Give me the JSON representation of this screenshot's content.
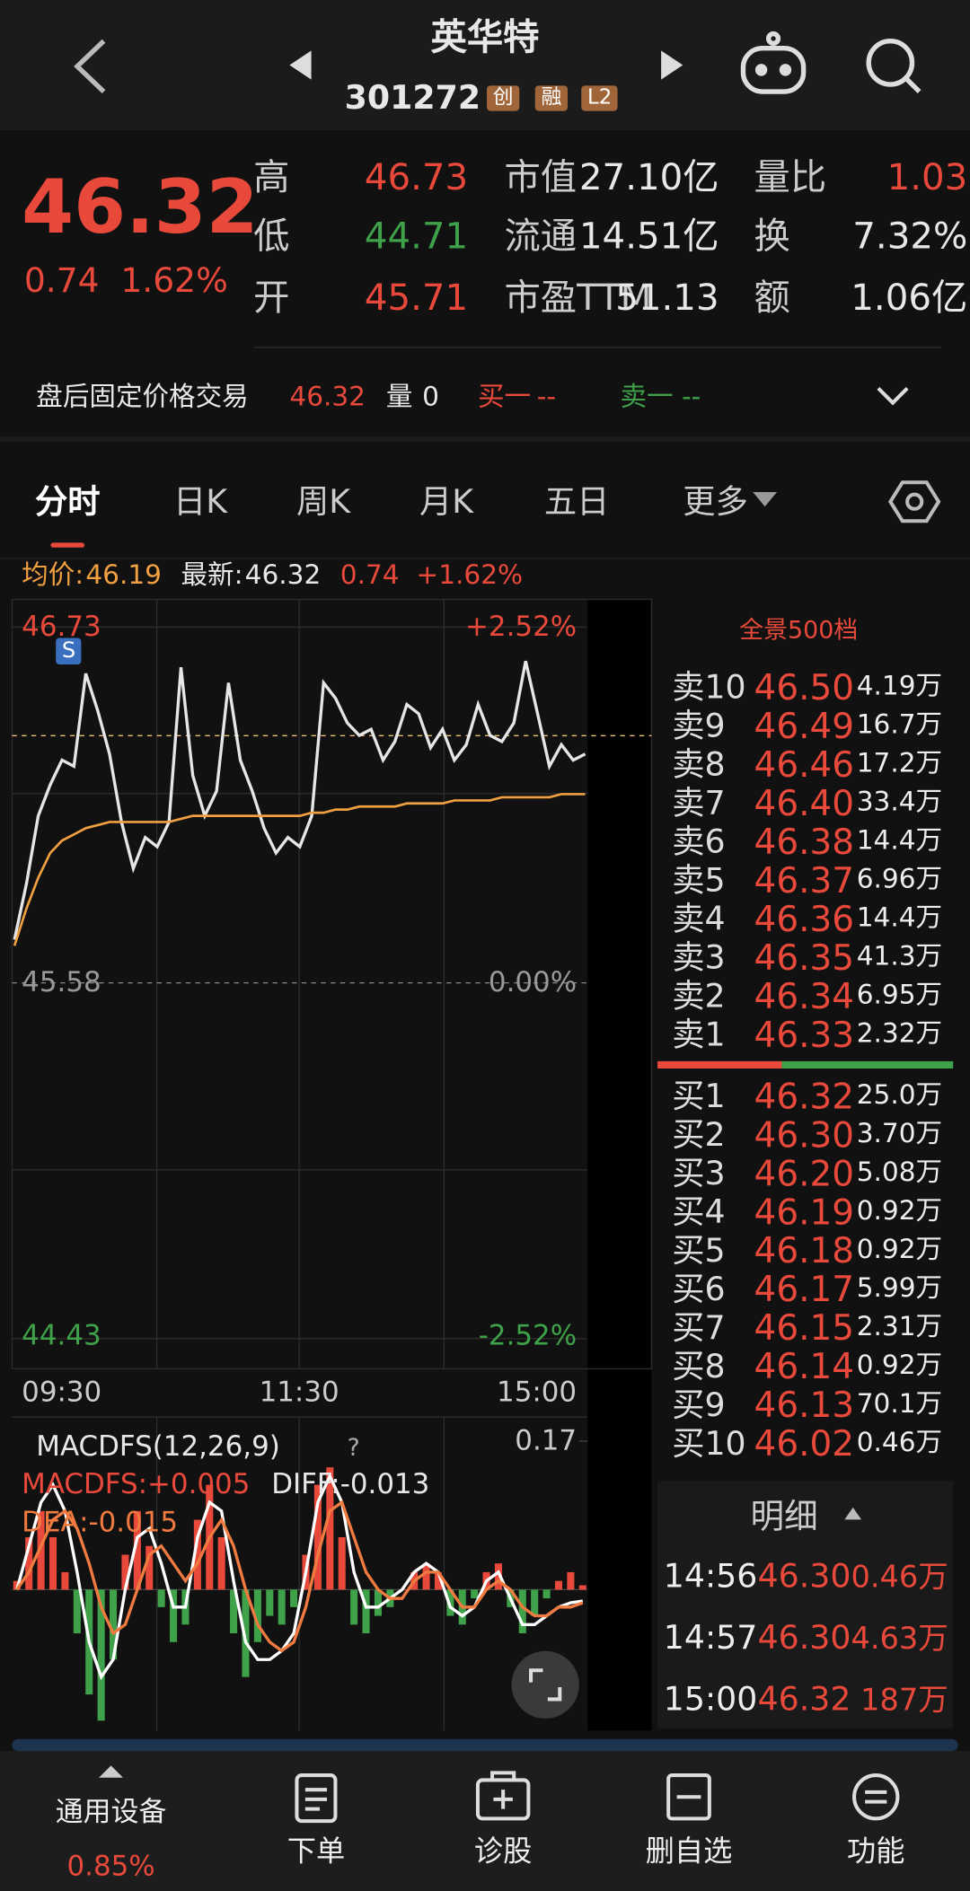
{
  "header": {
    "title": "英华特",
    "code": "301272",
    "badges": [
      "创",
      "融",
      "L2"
    ]
  },
  "quote": {
    "price": "46.32",
    "change": "0.74",
    "change_pct": "1.62%",
    "stats": [
      {
        "label": "高",
        "value": "46.73"
      },
      {
        "label": "低",
        "value": "44.71"
      },
      {
        "label": "开",
        "value": "45.71"
      },
      {
        "label": "市值",
        "value": "27.10亿"
      },
      {
        "label": "流通",
        "value": "14.51亿"
      },
      {
        "label": "市盈TTM",
        "value": "51.13"
      },
      {
        "label": "量比",
        "value": "1.03"
      },
      {
        "label": "换",
        "value": "7.32%"
      },
      {
        "label": "额",
        "value": "1.06亿"
      }
    ]
  },
  "after_hours": {
    "label": "盘后固定价格交易",
    "price": "46.32",
    "volume_label": "量",
    "volume": "0",
    "bid_label": "买一",
    "bid": "--",
    "ask_label": "卖一",
    "ask": "--"
  },
  "tabs": [
    "分时",
    "日K",
    "周K",
    "月K",
    "五日",
    "更多"
  ],
  "info_bar": {
    "avg_label": "均价:",
    "avg": "46.19",
    "last_label": "最新:",
    "last": "46.32",
    "change": "0.74",
    "change_pct": "+1.62%"
  },
  "chart_data": [
    {
      "type": "line",
      "marker": "S",
      "ylim": [
        44.43,
        46.73
      ],
      "yticks": [
        44.43,
        45.58,
        46.73
      ],
      "right_labels": [
        "-2.52%",
        "0.00%",
        "+2.52%"
      ],
      "x_labels": [
        "09:30",
        "11:30",
        "15:00"
      ],
      "series": [
        {
          "color": "#e6e6e6",
          "values": [
            45.72,
            45.9,
            46.12,
            46.22,
            46.3,
            46.28,
            46.58,
            46.46,
            46.32,
            46.1,
            45.95,
            46.05,
            46.02,
            46.1,
            46.6,
            46.25,
            46.12,
            46.2,
            46.55,
            46.3,
            46.2,
            46.08,
            46.0,
            46.05,
            46.02,
            46.12,
            46.55,
            46.5,
            46.42,
            46.38,
            46.4,
            46.3,
            46.36,
            46.48,
            46.45,
            46.34,
            46.4,
            46.3,
            46.35,
            46.48,
            46.38,
            46.36,
            46.42,
            46.62,
            46.45,
            46.28,
            46.35,
            46.3,
            46.32
          ]
        },
        {
          "color": "#f0a040",
          "values": [
            45.7,
            45.82,
            45.92,
            46.0,
            46.04,
            46.06,
            46.08,
            46.09,
            46.1,
            46.1,
            46.1,
            46.1,
            46.1,
            46.1,
            46.11,
            46.12,
            46.12,
            46.12,
            46.12,
            46.12,
            46.12,
            46.12,
            46.12,
            46.12,
            46.12,
            46.13,
            46.13,
            46.14,
            46.14,
            46.15,
            46.15,
            46.15,
            46.15,
            46.16,
            46.16,
            46.16,
            46.16,
            46.17,
            46.17,
            46.17,
            46.17,
            46.18,
            46.18,
            46.18,
            46.18,
            46.18,
            46.19,
            46.19,
            46.19
          ]
        }
      ]
    },
    {
      "type": "bar",
      "title": "MACDFS(12,26,9)",
      "help": "?",
      "ylim": [
        -0.16,
        0.17
      ],
      "yticks": [
        0.17
      ],
      "legend": [
        "MACDFS:+0.005",
        "DIFF:-0.013",
        "DEA:-0.015"
      ],
      "series": [
        {
          "type": "bar",
          "color": "#e8493b",
          "negative_color": "#3fa14a",
          "values": [
            0.01,
            0.06,
            0.09,
            0.06,
            0.02,
            -0.05,
            -0.12,
            -0.15,
            -0.08,
            0.04,
            0.09,
            0.05,
            -0.02,
            -0.06,
            -0.04,
            0.08,
            0.12,
            0.06,
            -0.05,
            -0.1,
            -0.06,
            -0.03,
            -0.04,
            -0.02,
            0.04,
            0.12,
            0.14,
            0.06,
            -0.04,
            -0.05,
            -0.03,
            -0.02,
            0.0,
            0.02,
            0.03,
            0.02,
            -0.03,
            -0.04,
            -0.01,
            0.02,
            0.03,
            -0.02,
            -0.05,
            -0.03,
            -0.01,
            0.01,
            0.02,
            0.005
          ]
        },
        {
          "type": "line",
          "color": "#ffffff",
          "values": [
            0.0,
            0.05,
            0.1,
            0.12,
            0.09,
            0.02,
            -0.06,
            -0.1,
            -0.08,
            0.0,
            0.06,
            0.07,
            0.03,
            -0.02,
            -0.02,
            0.06,
            0.1,
            0.09,
            0.01,
            -0.06,
            -0.08,
            -0.08,
            -0.07,
            -0.05,
            0.02,
            0.1,
            0.13,
            0.1,
            0.02,
            -0.02,
            -0.02,
            -0.01,
            0.0,
            0.02,
            0.03,
            0.02,
            -0.02,
            -0.03,
            -0.02,
            0.01,
            0.02,
            -0.01,
            -0.04,
            -0.04,
            -0.03,
            -0.02,
            -0.015,
            -0.013
          ]
        },
        {
          "type": "line",
          "color": "#f07a40",
          "values": [
            0.0,
            0.02,
            0.05,
            0.08,
            0.09,
            0.07,
            0.03,
            -0.02,
            -0.05,
            -0.04,
            0.0,
            0.04,
            0.05,
            0.03,
            0.01,
            0.03,
            0.06,
            0.08,
            0.05,
            0.0,
            -0.04,
            -0.06,
            -0.07,
            -0.06,
            -0.02,
            0.04,
            0.09,
            0.1,
            0.06,
            0.02,
            0.0,
            -0.01,
            -0.01,
            0.01,
            0.02,
            0.02,
            0.0,
            -0.02,
            -0.02,
            0.0,
            0.01,
            0.0,
            -0.02,
            -0.03,
            -0.03,
            -0.02,
            -0.02,
            -0.015
          ]
        }
      ]
    }
  ],
  "order_book": {
    "title": "全景500档",
    "asks": [
      {
        "level": "卖10",
        "price": "46.50",
        "volume": "4.19万"
      },
      {
        "level": "卖9",
        "price": "46.49",
        "volume": "16.7万"
      },
      {
        "level": "卖8",
        "price": "46.46",
        "volume": "17.2万"
      },
      {
        "level": "卖7",
        "price": "46.40",
        "volume": "33.4万"
      },
      {
        "level": "卖6",
        "price": "46.38",
        "volume": "14.4万"
      },
      {
        "level": "卖5",
        "price": "46.37",
        "volume": "6.96万"
      },
      {
        "level": "卖4",
        "price": "46.36",
        "volume": "14.4万"
      },
      {
        "level": "卖3",
        "price": "46.35",
        "volume": "41.3万"
      },
      {
        "level": "卖2",
        "price": "46.34",
        "volume": "6.95万"
      },
      {
        "level": "卖1",
        "price": "46.33",
        "volume": "2.32万"
      }
    ],
    "bids": [
      {
        "level": "买1",
        "price": "46.32",
        "volume": "25.0万"
      },
      {
        "level": "买2",
        "price": "46.30",
        "volume": "3.70万"
      },
      {
        "level": "买3",
        "price": "46.20",
        "volume": "5.08万"
      },
      {
        "level": "买4",
        "price": "46.19",
        "volume": "0.92万"
      },
      {
        "level": "买5",
        "price": "46.18",
        "volume": "0.92万"
      },
      {
        "level": "买6",
        "price": "46.17",
        "volume": "5.99万"
      },
      {
        "level": "买7",
        "price": "46.15",
        "volume": "2.31万"
      },
      {
        "level": "买8",
        "price": "46.14",
        "volume": "0.92万"
      },
      {
        "level": "买9",
        "price": "46.13",
        "volume": "70.1万"
      },
      {
        "level": "买10",
        "price": "46.02",
        "volume": "0.46万"
      }
    ]
  },
  "trade_detail": {
    "title": "明细",
    "rows": [
      {
        "time": "14:56",
        "price": "46.30",
        "volume": "0.46万"
      },
      {
        "time": "14:57",
        "price": "46.30",
        "volume": "4.63万"
      },
      {
        "time": "15:00",
        "price": "46.32",
        "volume": "187万"
      }
    ]
  },
  "bottom_nav": {
    "sector": "通用设备",
    "sector_change": "0.85%",
    "items": [
      "下单",
      "诊股",
      "删自选",
      "功能"
    ]
  }
}
